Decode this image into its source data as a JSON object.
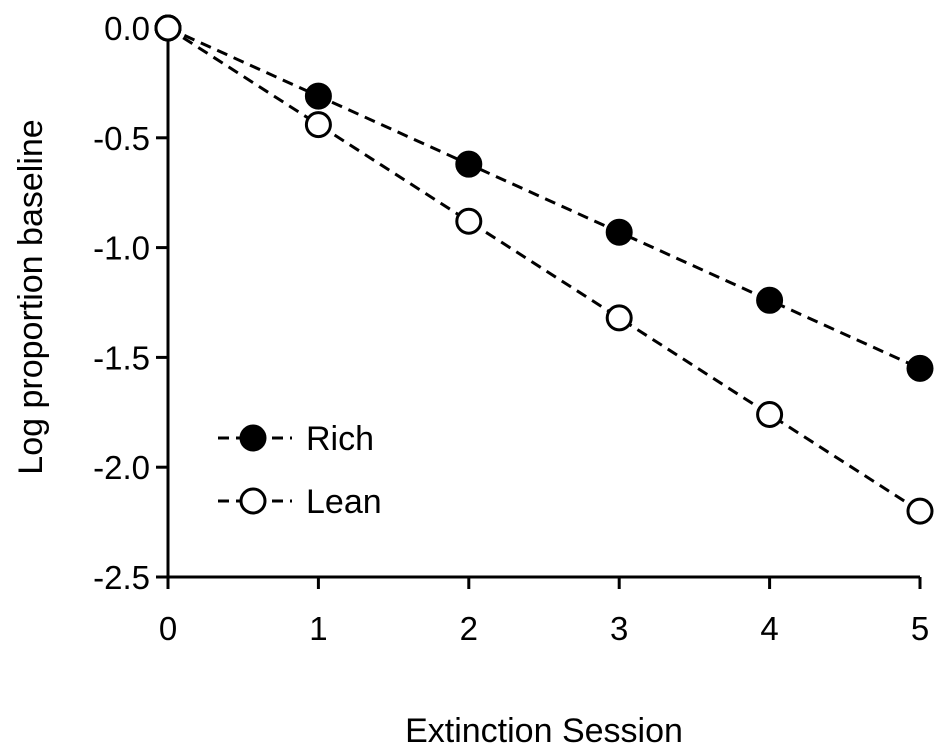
{
  "chart_data": {
    "type": "line",
    "title": "",
    "xlabel": "Extinction Session",
    "ylabel": "Log proportion baseline",
    "xlim": [
      0,
      5
    ],
    "ylim": [
      -2.5,
      0.0
    ],
    "x_ticks": [
      "0",
      "1",
      "2",
      "3",
      "4",
      "5"
    ],
    "y_ticks": [
      "0.0",
      "-0.5",
      "-1.0",
      "-1.5",
      "-2.0",
      "-2.5"
    ],
    "grid": false,
    "legend_position": "lower-left",
    "line_style": "dashed",
    "series": [
      {
        "name": "Rich",
        "marker": "filled-circle",
        "color": "#000000",
        "x": [
          0,
          1,
          2,
          3,
          4,
          5
        ],
        "y": [
          0.0,
          -0.31,
          -0.62,
          -0.93,
          -1.24,
          -1.55
        ]
      },
      {
        "name": "Lean",
        "marker": "open-circle",
        "color": "#000000",
        "x": [
          0,
          1,
          2,
          3,
          4,
          5
        ],
        "y": [
          0.0,
          -0.44,
          -0.88,
          -1.32,
          -1.76,
          -2.2
        ]
      }
    ]
  }
}
